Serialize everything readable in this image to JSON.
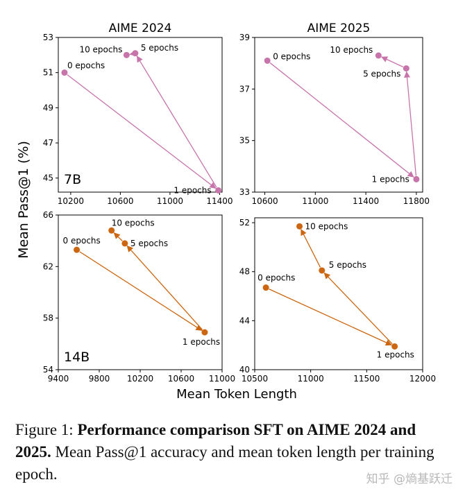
{
  "figure": {
    "ylabel": "Mean Pass@1 (%)",
    "xlabel": "Mean Token Length"
  },
  "caption": {
    "prefix": "Figure 1: ",
    "bold": "Performance comparison SFT on AIME 2024 and 2025.",
    "rest": " Mean Pass@1 accuracy and mean token length per training epoch."
  },
  "watermark": "知乎 @熵基跃迁",
  "colors": {
    "7B": "#c774aa",
    "14B": "#cc6611"
  },
  "chart_data": [
    {
      "type": "line",
      "title": "AIME 2024",
      "model_label": "7B",
      "xlim": [
        10100,
        11420
      ],
      "ylim": [
        44.2,
        53
      ],
      "xticks": [
        10200,
        10600,
        11000,
        11400
      ],
      "yticks": [
        45,
        47,
        49,
        51,
        53
      ],
      "xticks_shown": true,
      "points": [
        {
          "label": "0 epochs",
          "x": 10150,
          "y": 51.0
        },
        {
          "label": "1 epochs",
          "x": 11390,
          "y": 44.3
        },
        {
          "label": "5 epochs",
          "x": 10720,
          "y": 52.1
        },
        {
          "label": "10 epochs",
          "x": 10650,
          "y": 52.0
        }
      ]
    },
    {
      "type": "line",
      "title": "AIME 2025",
      "model_label": "",
      "xlim": [
        10520,
        11850
      ],
      "ylim": [
        33,
        39
      ],
      "xticks": [
        10600,
        11000,
        11400,
        11800
      ],
      "yticks": [
        33,
        35,
        37,
        39
      ],
      "xticks_shown": true,
      "points": [
        {
          "label": "0 epochs",
          "x": 10620,
          "y": 38.1
        },
        {
          "label": "1 epochs",
          "x": 11800,
          "y": 33.5
        },
        {
          "label": "5 epochs",
          "x": 11720,
          "y": 37.8
        },
        {
          "label": "10 epochs",
          "x": 11500,
          "y": 38.3
        }
      ]
    },
    {
      "type": "line",
      "title": "",
      "model_label": "14B",
      "xlim": [
        9400,
        11000
      ],
      "ylim": [
        54,
        66
      ],
      "xticks": [
        9400,
        9800,
        10200,
        10600,
        11000
      ],
      "yticks": [
        54,
        58,
        62,
        66
      ],
      "xticks_shown": true,
      "points": [
        {
          "label": "0 epochs",
          "x": 9580,
          "y": 63.3
        },
        {
          "label": "1 epochs",
          "x": 10830,
          "y": 56.9
        },
        {
          "label": "5 epochs",
          "x": 10050,
          "y": 63.8
        },
        {
          "label": "10 epochs",
          "x": 9920,
          "y": 64.8
        }
      ]
    },
    {
      "type": "line",
      "title": "",
      "model_label": "",
      "xlim": [
        10500,
        12000
      ],
      "ylim": [
        40,
        52.4
      ],
      "xticks": [
        10500,
        11000,
        11500,
        12000
      ],
      "yticks": [
        40,
        44,
        48,
        52
      ],
      "xticks_shown": true,
      "points": [
        {
          "label": "0 epochs",
          "x": 10600,
          "y": 46.7
        },
        {
          "label": "1 epochs",
          "x": 11750,
          "y": 41.9
        },
        {
          "label": "5 epochs",
          "x": 11100,
          "y": 48.1
        },
        {
          "label": "10 epochs",
          "x": 10900,
          "y": 51.7
        }
      ]
    }
  ]
}
